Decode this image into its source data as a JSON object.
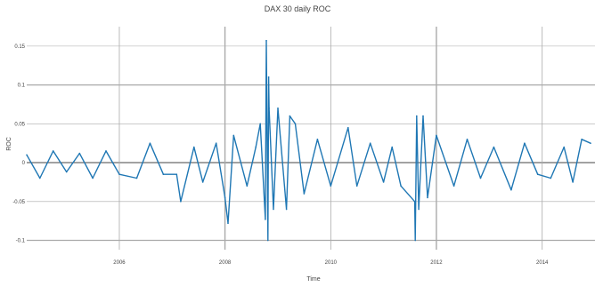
{
  "chart_data": {
    "type": "line",
    "title": "DAX 30 daily ROC",
    "xlabel": "Time",
    "ylabel": "ROC",
    "x_range": [
      "2004-04-01",
      "2015-01-01"
    ],
    "ylim": [
      -0.112,
      0.175
    ],
    "x_ticks": [
      "2006",
      "2008",
      "2010",
      "2012",
      "2014"
    ],
    "y_ticks": [
      -0.1,
      -0.05,
      0,
      0.05,
      0.1,
      0.15
    ],
    "y_tick_labels": [
      "-0.1",
      "-0.05",
      "0",
      "0.05",
      "0.1",
      "0.15"
    ],
    "grid": true,
    "legend": "none",
    "series": [
      {
        "color": "#1f77b4",
        "x": [
          "2004-04",
          "2004-07",
          "2004-10",
          "2005-01",
          "2005-04",
          "2005-07",
          "2005-10",
          "2006-01",
          "2006-05",
          "2006-08",
          "2006-11",
          "2007-02",
          "2007-03",
          "2007-06",
          "2007-08",
          "2007-11",
          "2008-01",
          "2008-01-22",
          "2008-03",
          "2008-06",
          "2008-08",
          "2008-09",
          "2008-10-06",
          "2008-10-13",
          "2008-10-24",
          "2008-10-29",
          "2008-11",
          "2008-12",
          "2009-01",
          "2009-03",
          "2009-03-24",
          "2009-05",
          "2009-07",
          "2009-10",
          "2010-01",
          "2010-05",
          "2010-07",
          "2010-10",
          "2011-01",
          "2011-03",
          "2011-05",
          "2011-08-04",
          "2011-08-08",
          "2011-08-18",
          "2011-09",
          "2011-10",
          "2011-11",
          "2012-01",
          "2012-05",
          "2012-08",
          "2012-11",
          "2013-02",
          "2013-06",
          "2013-09",
          "2013-12",
          "2014-03",
          "2014-06",
          "2014-08",
          "2014-10",
          "2014-12"
        ],
        "y": [
          0.01,
          -0.02,
          0.015,
          -0.012,
          0.012,
          -0.02,
          0.015,
          -0.015,
          -0.02,
          0.025,
          -0.015,
          -0.015,
          -0.05,
          0.02,
          -0.025,
          0.025,
          -0.045,
          -0.078,
          0.035,
          -0.03,
          0.02,
          0.05,
          -0.073,
          0.157,
          -0.1,
          0.11,
          0.07,
          -0.06,
          0.07,
          -0.06,
          0.06,
          0.05,
          -0.04,
          0.03,
          -0.03,
          0.045,
          -0.03,
          0.025,
          -0.025,
          0.02,
          -0.03,
          -0.05,
          -0.1,
          0.06,
          -0.06,
          0.06,
          -0.045,
          0.035,
          -0.03,
          0.03,
          -0.02,
          0.02,
          -0.035,
          0.025,
          -0.015,
          -0.02,
          0.02,
          -0.025,
          0.03,
          0.025
        ]
      }
    ]
  }
}
